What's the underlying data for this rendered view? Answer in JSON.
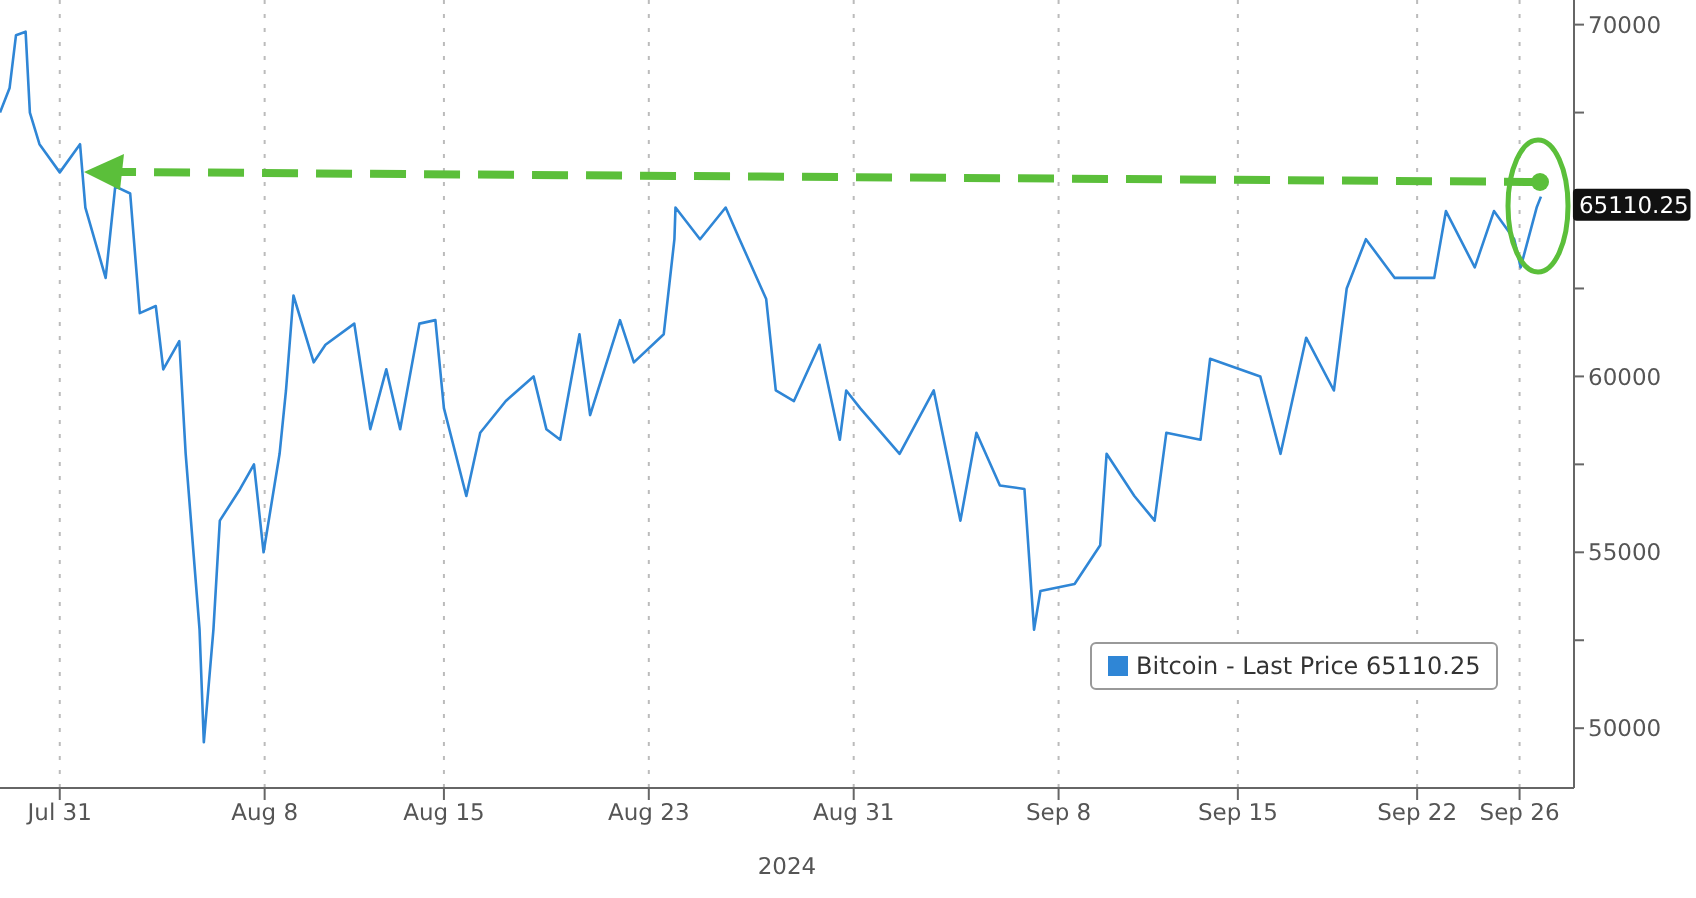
{
  "chart_data": {
    "type": "line",
    "xlabel": "2024",
    "x": [
      "2024-07-28T16:00",
      "2024-07-29T01:00",
      "2024-07-29T07:00",
      "2024-07-29T16:00",
      "2024-07-29T20:00",
      "2024-07-30T05:00",
      "2024-07-31T00:00",
      "2024-07-31T19:00",
      "2024-08-01T00:00",
      "2024-08-01T19:00",
      "2024-08-02T04:00",
      "2024-08-02T18:00",
      "2024-08-03T03:00",
      "2024-08-03T18:00",
      "2024-08-04T01:00",
      "2024-08-04T16:00",
      "2024-08-04T22:00",
      "2024-08-05T11:00",
      "2024-08-05T15:00",
      "2024-08-06T00:00",
      "2024-08-06T06:00",
      "2024-08-07T01:00",
      "2024-08-07T14:00",
      "2024-08-07T23:00",
      "2024-08-08T14:00",
      "2024-08-08T20:00",
      "2024-08-09T03:00",
      "2024-08-09T22:00",
      "2024-08-10T09:00",
      "2024-08-11T12:00",
      "2024-08-12T03:00",
      "2024-08-12T18:00",
      "2024-08-13T07:00",
      "2024-08-14T01:00",
      "2024-08-14T16:00",
      "2024-08-15T00:00",
      "2024-08-15T21:00",
      "2024-08-16T10:00",
      "2024-08-17T10:00",
      "2024-08-18T12:00",
      "2024-08-19T00:00",
      "2024-08-19T13:00",
      "2024-08-20T07:00",
      "2024-08-20T17:00",
      "2024-08-21T21:00",
      "2024-08-22T10:00",
      "2024-08-23T14:00",
      "2024-08-24T00:00",
      "2024-08-24T01:00",
      "2024-08-25T00:00",
      "2024-08-26T00:00",
      "2024-08-26T13:00",
      "2024-08-27T14:00",
      "2024-08-27T23:00",
      "2024-08-28T16:00",
      "2024-08-29T16:00",
      "2024-08-30T11:00",
      "2024-08-30T17:00",
      "2024-08-31T06:00",
      "2024-09-01T19:00",
      "2024-09-03T03:00",
      "2024-09-04T04:00",
      "2024-09-04T19:00",
      "2024-09-05T17:00",
      "2024-09-06T16:00",
      "2024-09-07T01:00",
      "2024-09-07T07:00",
      "2024-09-08T15:00",
      "2024-09-09T15:00",
      "2024-09-09T21:00",
      "2024-09-10T23:00",
      "2024-09-11T18:00",
      "2024-09-12T05:00",
      "2024-09-13T13:00",
      "2024-09-13T22:00",
      "2024-09-15T21:00",
      "2024-09-16T16:00",
      "2024-09-17T16:00",
      "2024-09-18T18:00",
      "2024-09-19T06:00",
      "2024-09-20T00:00",
      "2024-09-21T03:00",
      "2024-09-22T16:00",
      "2024-09-23T03:00",
      "2024-09-24T06:00",
      "2024-09-25T00:00",
      "2024-09-25T19:00",
      "2024-09-26T01:00",
      "2024-09-26T16:00",
      "2024-09-26T20:00"
    ],
    "series": [
      {
        "name": "Bitcoin - Last Price 65110.25",
        "color": "#2f86d6",
        "values": [
          67500,
          68200,
          69700,
          69800,
          67500,
          66600,
          65800,
          66600,
          64800,
          62800,
          65400,
          65200,
          61800,
          62000,
          60200,
          61000,
          57800,
          52800,
          49600,
          52800,
          55900,
          56800,
          57500,
          55000,
          57800,
          59600,
          62300,
          60400,
          60900,
          61500,
          58500,
          60200,
          58500,
          61500,
          61600,
          59100,
          56600,
          58400,
          59300,
          60000,
          58500,
          58200,
          61200,
          58900,
          61600,
          60400,
          61200,
          63900,
          64800,
          63900,
          64800,
          63900,
          62200,
          59600,
          59300,
          60900,
          58200,
          59600,
          59100,
          57800,
          59600,
          55900,
          58400,
          56900,
          56800,
          52800,
          53900,
          54100,
          55200,
          57800,
          56600,
          55900,
          58400,
          58200,
          60500,
          60000,
          57800,
          61100,
          59600,
          62500,
          63900,
          62800,
          62800,
          64700,
          63100,
          64700,
          63900,
          63100,
          64800,
          65110.25
        ],
        "value_labels": [
          null,
          null,
          null,
          null,
          null,
          null,
          null,
          null,
          null,
          null,
          null,
          null,
          null,
          null,
          null,
          null,
          null,
          null,
          null,
          null,
          null,
          null,
          null,
          null,
          null,
          null,
          null,
          null,
          null,
          null,
          null,
          null,
          null,
          null,
          null,
          null,
          null,
          null,
          null,
          null,
          null,
          null,
          null,
          null,
          null,
          null,
          null,
          null,
          null,
          null,
          null,
          null,
          null,
          null,
          null,
          null,
          null,
          null,
          null,
          null,
          null,
          null,
          null,
          null,
          null,
          null,
          null,
          null,
          null,
          null,
          null,
          null,
          null,
          null,
          null,
          null,
          null,
          null,
          null,
          null,
          null,
          null,
          null,
          null,
          null,
          null,
          null,
          null,
          null,
          "65110.25"
        ]
      }
    ],
    "xlim": [
      "2024-07-28T16:00",
      "2024-09-28T03:00"
    ],
    "xticks": [
      {
        "value": "2024-07-31",
        "label": "Jul 31"
      },
      {
        "value": "2024-08-08",
        "label": "Aug 8"
      },
      {
        "value": "2024-08-15",
        "label": "Aug 15"
      },
      {
        "value": "2024-08-23",
        "label": "Aug 23"
      },
      {
        "value": "2024-08-31",
        "label": "Aug 31"
      },
      {
        "value": "2024-09-08",
        "label": "Sep 8"
      },
      {
        "value": "2024-09-15",
        "label": "Sep 15"
      },
      {
        "value": "2024-09-22",
        "label": "Sep 22"
      },
      {
        "value": "2024-09-26",
        "label": "Sep 26"
      }
    ],
    "ylim": [
      48300,
      70700
    ],
    "yticks": [
      50000,
      {
        "value": 52500,
        "label": null
      },
      55000,
      {
        "value": 57500,
        "label": null
      },
      60000,
      {
        "value": 62500,
        "label": null
      },
      {
        "value": 65000,
        "label": null
      },
      {
        "value": 67500,
        "label": null
      },
      70000
    ],
    "grid": true,
    "legend": "bottom right",
    "marker": "none",
    "line_style": "solid"
  }
}
